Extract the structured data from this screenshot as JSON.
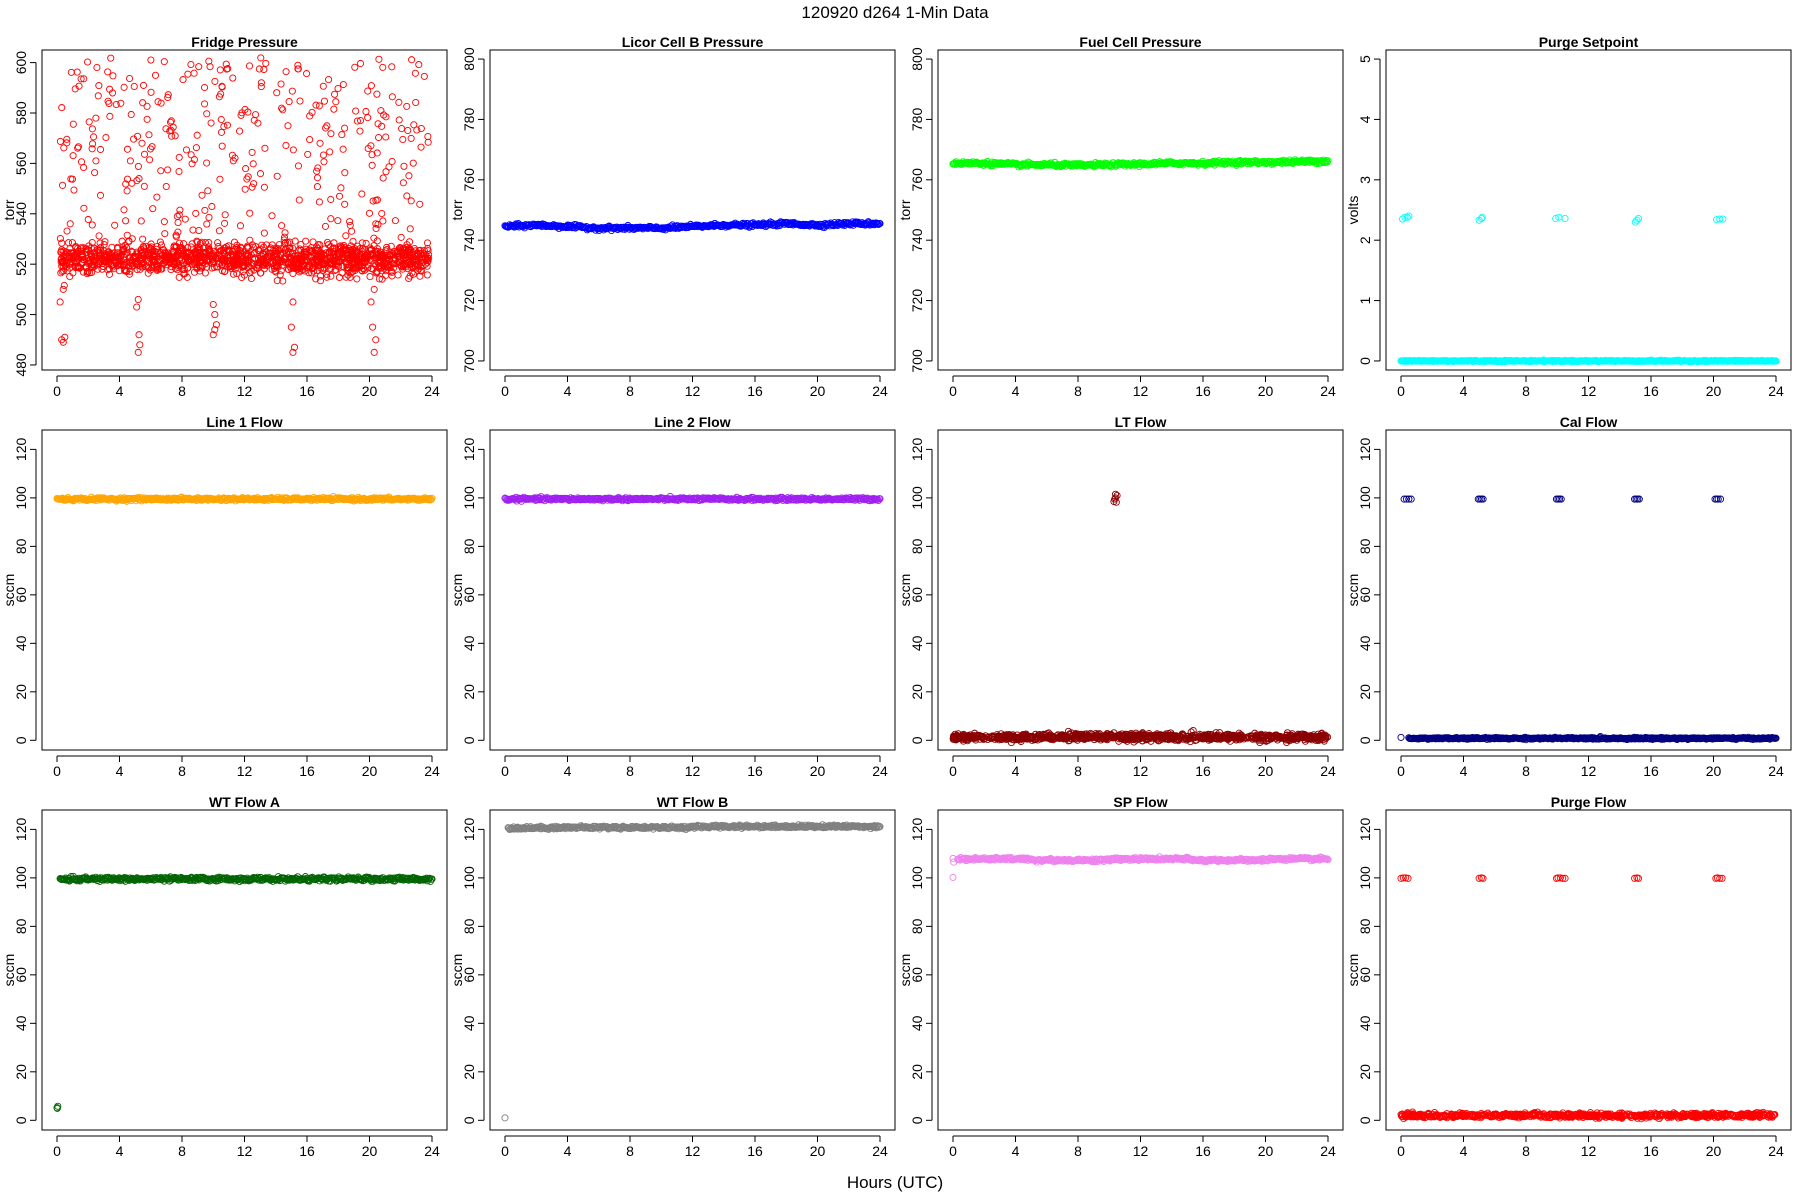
{
  "figure": {
    "title": "120920   d264   1-Min Data",
    "xlabel": "Hours (UTC)"
  },
  "chart_data": [
    {
      "type": "scatter",
      "title": "Fridge Pressure",
      "ylabel": "torr",
      "color": "#ff0000",
      "marker": "open-circle",
      "xlim": [
        0,
        24
      ],
      "xticks": [
        0,
        4,
        8,
        12,
        16,
        20,
        24
      ],
      "ylim": [
        478,
        605
      ],
      "yticks": [
        480,
        500,
        520,
        540,
        560,
        580,
        600
      ],
      "series": [
        {
          "kind": "band",
          "x_range": [
            0.2,
            23.8
          ],
          "center": 522,
          "spread": 5,
          "density": 1400
        },
        {
          "kind": "scatter-sparse",
          "x_range": [
            0.2,
            23.8
          ],
          "y_range": [
            528,
            602
          ],
          "count": 330
        },
        {
          "kind": "dips",
          "points": [
            [
              0.3,
              490
            ],
            [
              0.4,
              489
            ],
            [
              0.5,
              491
            ],
            [
              0.2,
              505
            ],
            [
              0.4,
              510
            ],
            [
              5.2,
              485
            ],
            [
              5.3,
              488
            ],
            [
              5.25,
              492
            ],
            [
              5.1,
              503
            ],
            [
              5.2,
              506
            ],
            [
              10.0,
              492
            ],
            [
              10.1,
              494
            ],
            [
              10.2,
              496
            ],
            [
              10.1,
              500
            ],
            [
              10.0,
              504
            ],
            [
              15.1,
              485
            ],
            [
              15.2,
              487
            ],
            [
              15.0,
              495
            ],
            [
              15.1,
              505
            ],
            [
              20.3,
              485
            ],
            [
              20.4,
              490
            ],
            [
              20.2,
              495
            ],
            [
              20.1,
              505
            ],
            [
              20.3,
              510
            ]
          ]
        }
      ]
    },
    {
      "type": "scatter",
      "title": "Licor Cell B Pressure",
      "ylabel": "torr",
      "color": "#0000ff",
      "marker": "open-circle",
      "xlim": [
        0,
        24
      ],
      "xticks": [
        0,
        4,
        8,
        12,
        16,
        20,
        24
      ],
      "ylim": [
        697,
        803
      ],
      "yticks": [
        700,
        720,
        740,
        760,
        780,
        800
      ],
      "series": [
        {
          "kind": "line-dense",
          "x": [
            0,
            2,
            4,
            6,
            8,
            10,
            12,
            14,
            16,
            18,
            20,
            22,
            24
          ],
          "y": [
            744.5,
            745,
            744.5,
            744,
            744,
            744,
            744.5,
            745,
            745,
            745.5,
            745,
            745.5,
            745.5
          ],
          "width": 1.2
        }
      ]
    },
    {
      "type": "scatter",
      "title": "Fuel Cell Pressure",
      "ylabel": "torr",
      "color": "#00ff00",
      "marker": "open-circle",
      "xlim": [
        0,
        24
      ],
      "xticks": [
        0,
        4,
        8,
        12,
        16,
        20,
        24
      ],
      "ylim": [
        697,
        803
      ],
      "yticks": [
        700,
        720,
        740,
        760,
        780,
        800
      ],
      "series": [
        {
          "kind": "line-dense",
          "x": [
            0,
            2,
            4,
            6,
            8,
            10,
            12,
            14,
            16,
            18,
            20,
            22,
            24
          ],
          "y": [
            765.5,
            765.5,
            765,
            765,
            764.8,
            765,
            765.2,
            765.5,
            765.5,
            765.8,
            765.8,
            766,
            766.2
          ],
          "width": 1.2
        }
      ]
    },
    {
      "type": "scatter",
      "title": "Purge Setpoint",
      "ylabel": "volts",
      "color": "#00ffff",
      "marker": "open-circle",
      "xlim": [
        0,
        24
      ],
      "xticks": [
        0,
        4,
        8,
        12,
        16,
        20,
        24
      ],
      "ylim": [
        -0.15,
        5.15
      ],
      "yticks": [
        0,
        1,
        2,
        3,
        4,
        5
      ],
      "series": [
        {
          "kind": "line-dense",
          "x": [
            0,
            24
          ],
          "y": [
            0,
            0
          ],
          "width": 0.02
        },
        {
          "kind": "clusters",
          "points": [
            [
              0.1,
              2.35
            ],
            [
              0.25,
              2.38
            ],
            [
              0.4,
              2.38
            ],
            [
              0.5,
              2.4
            ],
            [
              5.0,
              2.33
            ],
            [
              5.15,
              2.36
            ],
            [
              5.2,
              2.38
            ],
            [
              9.9,
              2.36
            ],
            [
              10.1,
              2.38
            ],
            [
              10.5,
              2.36
            ],
            [
              15.0,
              2.3
            ],
            [
              15.1,
              2.33
            ],
            [
              15.2,
              2.36
            ],
            [
              20.2,
              2.34
            ],
            [
              20.4,
              2.35
            ],
            [
              20.6,
              2.35
            ]
          ]
        }
      ]
    },
    {
      "type": "scatter",
      "title": "Line 1 Flow",
      "ylabel": "sccm",
      "color": "#ffa500",
      "marker": "open-circle",
      "xlim": [
        0,
        24
      ],
      "xticks": [
        0,
        4,
        8,
        12,
        16,
        20,
        24
      ],
      "ylim": [
        -4,
        128
      ],
      "yticks": [
        0,
        20,
        40,
        60,
        80,
        100,
        120
      ],
      "series": [
        {
          "kind": "line-dense",
          "x": [
            0,
            24
          ],
          "y": [
            99.5,
            99.5
          ],
          "width": 1.2
        }
      ]
    },
    {
      "type": "scatter",
      "title": "Line 2 Flow",
      "ylabel": "sccm",
      "color": "#a020f0",
      "marker": "open-circle",
      "xlim": [
        0,
        24
      ],
      "xticks": [
        0,
        4,
        8,
        12,
        16,
        20,
        24
      ],
      "ylim": [
        -4,
        128
      ],
      "yticks": [
        0,
        20,
        40,
        60,
        80,
        100,
        120
      ],
      "series": [
        {
          "kind": "line-dense",
          "x": [
            0,
            24
          ],
          "y": [
            99.5,
            99.5
          ],
          "width": 1.2
        }
      ]
    },
    {
      "type": "scatter",
      "title": "LT Flow",
      "ylabel": "sccm",
      "color": "#8b0000",
      "marker": "open-circle",
      "xlim": [
        0,
        24
      ],
      "xticks": [
        0,
        4,
        8,
        12,
        16,
        20,
        24
      ],
      "ylim": [
        -4,
        128
      ],
      "yticks": [
        0,
        20,
        40,
        60,
        80,
        100,
        120
      ],
      "series": [
        {
          "kind": "band",
          "x_range": [
            0,
            24
          ],
          "center": 1.3,
          "spread": 1.2,
          "density": 1000
        },
        {
          "kind": "clusters",
          "points": [
            [
              10.3,
              98.5
            ],
            [
              10.4,
              100
            ],
            [
              10.5,
              101
            ],
            [
              10.35,
              99.5
            ],
            [
              10.45,
              98.2
            ],
            [
              10.4,
              101.5
            ]
          ]
        }
      ]
    },
    {
      "type": "scatter",
      "title": "Cal Flow",
      "ylabel": "sccm",
      "color": "#000080",
      "marker": "open-circle",
      "xlim": [
        0,
        24
      ],
      "xticks": [
        0,
        4,
        8,
        12,
        16,
        20,
        24
      ],
      "ylim": [
        -4,
        128
      ],
      "yticks": [
        0,
        20,
        40,
        60,
        80,
        100,
        120
      ],
      "series": [
        {
          "kind": "line-dense",
          "x": [
            0.5,
            24
          ],
          "y": [
            0.8,
            0.8
          ],
          "width": 0.7
        },
        {
          "kind": "clusters",
          "points": [
            [
              0.0,
              1.2
            ],
            [
              0.2,
              99.5
            ],
            [
              0.35,
              99.5
            ],
            [
              0.5,
              99.5
            ],
            [
              0.65,
              99.5
            ],
            [
              4.95,
              99.5
            ],
            [
              5.05,
              99.5
            ],
            [
              5.15,
              99.5
            ],
            [
              5.25,
              99.5
            ],
            [
              9.95,
              99.5
            ],
            [
              10.05,
              99.5
            ],
            [
              10.15,
              99.5
            ],
            [
              10.25,
              99.5
            ],
            [
              14.95,
              99.5
            ],
            [
              15.05,
              99.5
            ],
            [
              15.15,
              99.5
            ],
            [
              15.25,
              99.5
            ],
            [
              20.1,
              99.5
            ],
            [
              20.2,
              99.5
            ],
            [
              20.3,
              99.5
            ],
            [
              20.45,
              99.5
            ]
          ]
        }
      ]
    },
    {
      "type": "scatter",
      "title": "WT Flow A",
      "ylabel": "sccm",
      "color": "#006400",
      "marker": "open-circle",
      "xlim": [
        0,
        24
      ],
      "xticks": [
        0,
        4,
        8,
        12,
        16,
        20,
        24
      ],
      "ylim": [
        -4,
        128
      ],
      "yticks": [
        0,
        20,
        40,
        60,
        80,
        100,
        120
      ],
      "series": [
        {
          "kind": "line-dense",
          "x": [
            0.2,
            24
          ],
          "y": [
            99.5,
            99.5
          ],
          "width": 1.6
        },
        {
          "kind": "clusters",
          "points": [
            [
              0.0,
              5.2
            ],
            [
              0.05,
              5.8
            ],
            [
              0.02,
              4.9
            ]
          ]
        }
      ]
    },
    {
      "type": "scatter",
      "title": "WT Flow B",
      "ylabel": "sccm",
      "color": "#808080",
      "marker": "open-circle",
      "xlim": [
        0,
        24
      ],
      "xticks": [
        0,
        4,
        8,
        12,
        16,
        20,
        24
      ],
      "ylim": [
        -4,
        128
      ],
      "yticks": [
        0,
        20,
        40,
        60,
        80,
        100,
        120
      ],
      "series": [
        {
          "kind": "line-dense",
          "x": [
            0.2,
            4,
            8,
            12,
            13,
            16,
            20,
            24
          ],
          "y": [
            120.5,
            120.8,
            120.8,
            120.8,
            121.2,
            121.2,
            121.2,
            121.2
          ],
          "width": 1.2
        },
        {
          "kind": "clusters",
          "points": [
            [
              0.0,
              1.0
            ]
          ]
        }
      ]
    },
    {
      "type": "scatter",
      "title": "SP Flow",
      "ylabel": "sccm",
      "color": "#ee82ee",
      "marker": "open-circle",
      "xlim": [
        0,
        24
      ],
      "xticks": [
        0,
        4,
        8,
        12,
        16,
        20,
        24
      ],
      "ylim": [
        -4,
        128
      ],
      "yticks": [
        0,
        20,
        40,
        60,
        80,
        100,
        120
      ],
      "series": [
        {
          "kind": "line-dense",
          "x": [
            0.3,
            5,
            5.2,
            10,
            10.3,
            15,
            15.3,
            20,
            20.3,
            24
          ],
          "y": [
            107.8,
            107.8,
            107.3,
            107.3,
            107.8,
            107.8,
            107.3,
            107.3,
            107.8,
            107.8
          ],
          "width": 1.2
        },
        {
          "kind": "clusters",
          "points": [
            [
              0.0,
              100.2
            ],
            [
              0.05,
              106.5
            ],
            [
              0.0,
              108
            ]
          ]
        }
      ]
    },
    {
      "type": "scatter",
      "title": "Purge Flow",
      "ylabel": "sccm",
      "color": "#ff0000",
      "marker": "open-circle",
      "xlim": [
        0,
        24
      ],
      "xticks": [
        0,
        4,
        8,
        12,
        16,
        20,
        24
      ],
      "ylim": [
        -4,
        128
      ],
      "yticks": [
        0,
        20,
        40,
        60,
        80,
        100,
        120
      ],
      "series": [
        {
          "kind": "band",
          "x_range": [
            0,
            24
          ],
          "center": 2.0,
          "spread": 0.8,
          "density": 700
        },
        {
          "kind": "clusters",
          "points": [
            [
              0.0,
              99.8
            ],
            [
              0.15,
              100
            ],
            [
              0.3,
              100
            ],
            [
              0.45,
              99.8
            ],
            [
              5.0,
              99.8
            ],
            [
              5.15,
              100
            ],
            [
              5.25,
              99.8
            ],
            [
              9.95,
              99.8
            ],
            [
              10.05,
              100
            ],
            [
              10.2,
              100
            ],
            [
              10.35,
              99.8
            ],
            [
              10.5,
              99.8
            ],
            [
              14.95,
              99.8
            ],
            [
              15.1,
              100
            ],
            [
              15.2,
              99.8
            ],
            [
              20.15,
              99.8
            ],
            [
              20.25,
              100
            ],
            [
              20.4,
              99.8
            ],
            [
              20.55,
              99.8
            ]
          ]
        }
      ]
    }
  ]
}
